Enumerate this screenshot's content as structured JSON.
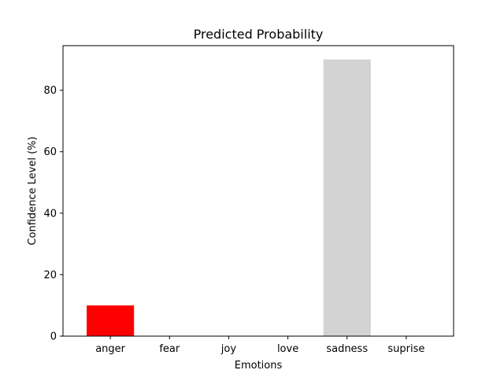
{
  "chart_data": {
    "type": "bar",
    "title": "Predicted Probability",
    "xlabel": "Emotions",
    "ylabel": "Confidence Level (%)",
    "categories": [
      "anger",
      "fear",
      "joy",
      "love",
      "sadness",
      "suprise"
    ],
    "values": [
      10,
      0,
      0,
      0,
      90,
      0
    ],
    "bar_colors": [
      "#ff0000",
      "#d3d3d3",
      "#d3d3d3",
      "#d3d3d3",
      "#d3d3d3",
      "#d3d3d3"
    ],
    "ylim": [
      0,
      94.5
    ],
    "yticks": [
      0,
      20,
      40,
      60,
      80
    ],
    "grid": false,
    "legend": "none"
  }
}
